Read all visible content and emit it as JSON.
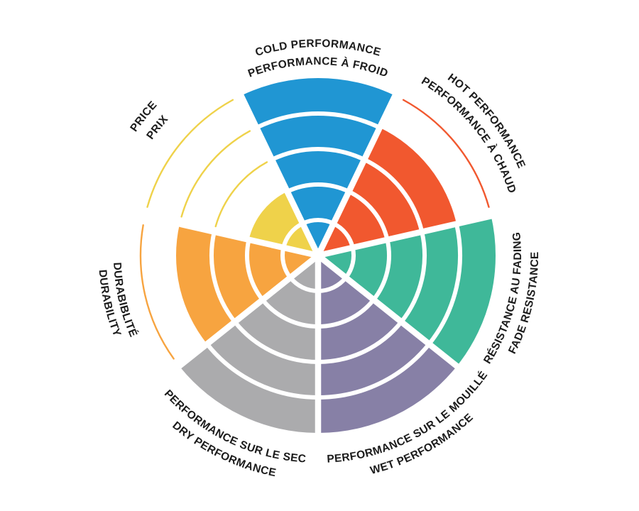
{
  "page": {
    "background": "#FFFFFF"
  },
  "chart_data": {
    "type": "pie",
    "subtype": "radial-score-wheel",
    "scale": {
      "min": 0,
      "max": 5,
      "rings": 5
    },
    "separator_color": "#FFFFFF",
    "label_color": "#1B1B1B",
    "segments": [
      {
        "id": "cold-performance",
        "line1": "COLD PERFORMANCE",
        "line2": "PERFORMANCE À FROID",
        "value": 5,
        "color": "#2096D3"
      },
      {
        "id": "hot-performance",
        "line1": "HOT PERFORMANCE",
        "line2": "PERFORMANCE À CHAUD",
        "value": 4,
        "color": "#F1582F"
      },
      {
        "id": "fade-resistance",
        "line1": "RÉSISTANCE AU FADING",
        "line2": "FADE RESISTANCE",
        "value": 5,
        "color": "#3FB899"
      },
      {
        "id": "wet-performance",
        "line1": "PERFORMANCE SUR LE MOUILLÉ",
        "line2": "WET PERFORMANCE",
        "value": 5,
        "color": "#8780A6"
      },
      {
        "id": "dry-performance",
        "line1": "PERFORMANCE SUR LE SEC",
        "line2": "DRY PERFORMANCE",
        "value": 5,
        "color": "#ABABAD"
      },
      {
        "id": "durability",
        "line1": "DURABIBLITÉ",
        "line2": "DURABILITY",
        "value": 4,
        "color": "#F7A440"
      },
      {
        "id": "price",
        "line1": "PRICE",
        "line2": "PRIX",
        "value": 2,
        "color": "#EFD24A"
      }
    ]
  }
}
